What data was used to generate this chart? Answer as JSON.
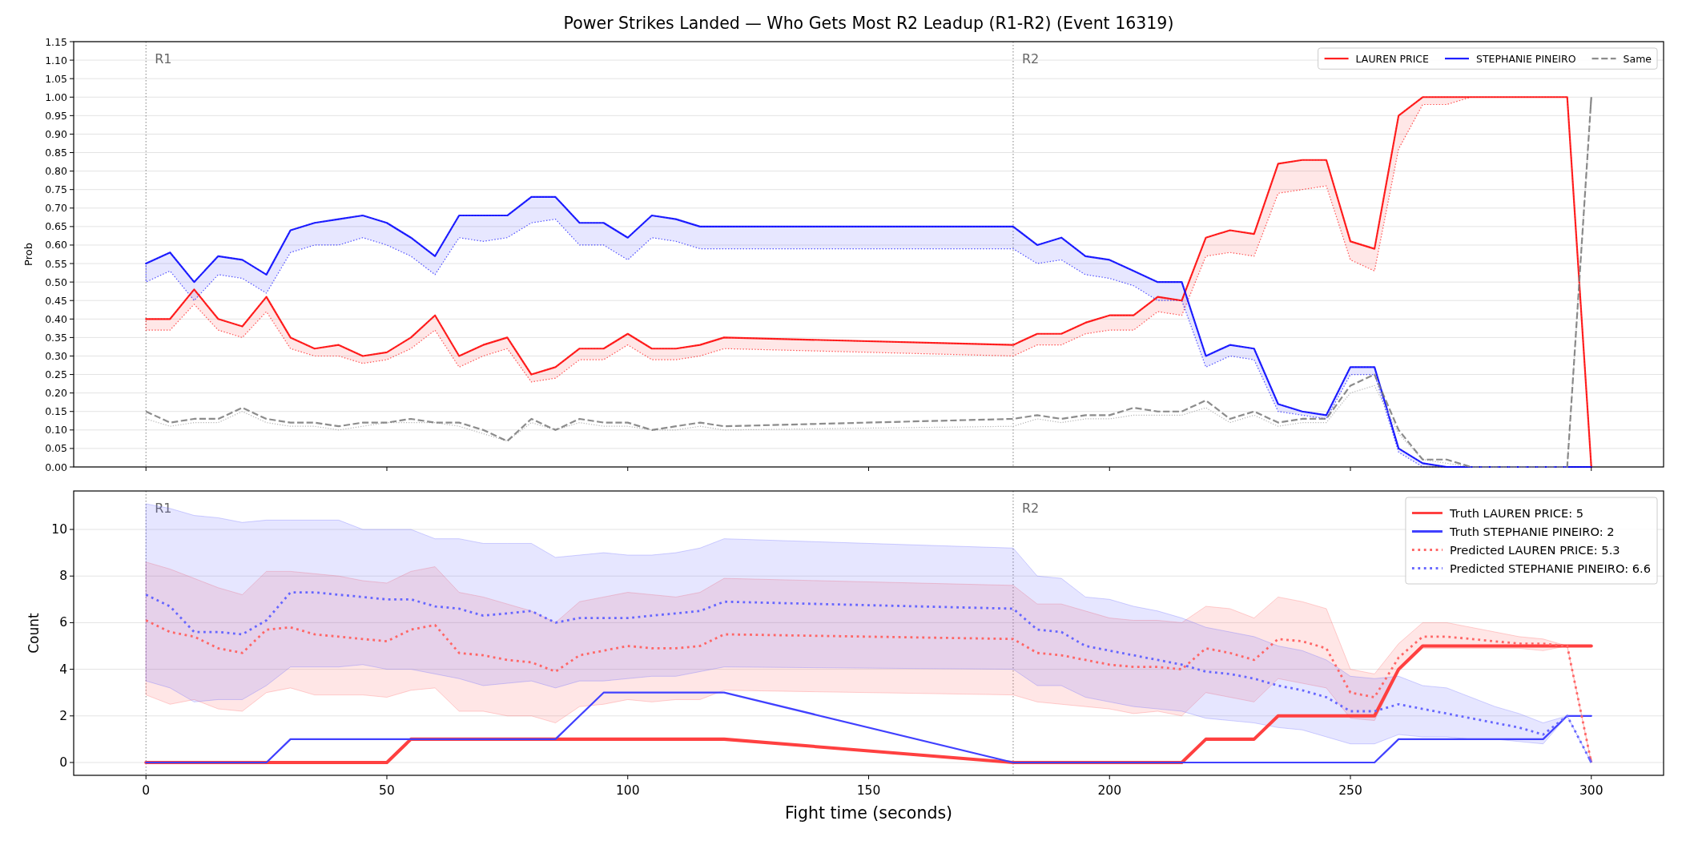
{
  "chart_data": [
    {
      "type": "line",
      "title": "Power Strikes Landed — Who Gets Most R2 Leadup (R1-R2) (Event 16319)",
      "ylabel": "Prob",
      "x": [
        0,
        5,
        10,
        15,
        20,
        25,
        30,
        35,
        40,
        45,
        50,
        55,
        60,
        65,
        70,
        75,
        80,
        85,
        90,
        95,
        100,
        105,
        110,
        115,
        120,
        180,
        185,
        190,
        195,
        200,
        205,
        210,
        215,
        220,
        225,
        230,
        235,
        240,
        245,
        250,
        255,
        260,
        265,
        270,
        275,
        280,
        285,
        290,
        295,
        300
      ],
      "series": [
        {
          "name": "LAUREN PRICE",
          "color": "#ff2020",
          "line_style": "solid",
          "values": [
            0.4,
            0.4,
            0.48,
            0.4,
            0.38,
            0.46,
            0.35,
            0.32,
            0.33,
            0.3,
            0.31,
            0.35,
            0.41,
            0.3,
            0.33,
            0.35,
            0.25,
            0.27,
            0.32,
            0.32,
            0.36,
            0.32,
            0.32,
            0.33,
            0.35,
            0.33,
            0.36,
            0.36,
            0.39,
            0.41,
            0.41,
            0.46,
            0.45,
            0.62,
            0.64,
            0.63,
            0.82,
            0.83,
            0.83,
            0.61,
            0.59,
            0.95,
            1.0,
            1.0,
            1.0,
            1.0,
            1.0,
            1.0,
            1.0,
            0
          ],
          "upper": [
            0.4,
            0.4,
            0.48,
            0.4,
            0.38,
            0.46,
            0.35,
            0.32,
            0.33,
            0.3,
            0.31,
            0.35,
            0.41,
            0.3,
            0.33,
            0.35,
            0.25,
            0.27,
            0.32,
            0.32,
            0.36,
            0.32,
            0.32,
            0.33,
            0.35,
            0.33,
            0.36,
            0.36,
            0.39,
            0.41,
            0.41,
            0.46,
            0.45,
            0.62,
            0.64,
            0.63,
            0.82,
            0.83,
            0.83,
            0.61,
            0.59,
            0.95,
            1.0,
            1.0,
            1.0,
            1.0,
            1.0,
            1.0,
            1.0,
            0
          ],
          "lower": [
            0.37,
            0.37,
            0.44,
            0.37,
            0.35,
            0.42,
            0.32,
            0.3,
            0.3,
            0.28,
            0.29,
            0.32,
            0.37,
            0.27,
            0.3,
            0.32,
            0.23,
            0.24,
            0.29,
            0.29,
            0.33,
            0.29,
            0.29,
            0.3,
            0.32,
            0.3,
            0.33,
            0.33,
            0.36,
            0.37,
            0.37,
            0.42,
            0.41,
            0.57,
            0.58,
            0.57,
            0.74,
            0.75,
            0.76,
            0.56,
            0.53,
            0.86,
            0.98,
            0.98,
            1.0,
            1.0,
            1.0,
            1.0,
            1.0,
            0
          ]
        },
        {
          "name": "STEPHANIE PINEIRO",
          "color": "#2020ff",
          "line_style": "solid",
          "values": [
            0.55,
            0.58,
            0.5,
            0.57,
            0.56,
            0.52,
            0.64,
            0.66,
            0.67,
            0.68,
            0.66,
            0.62,
            0.57,
            0.68,
            0.68,
            0.68,
            0.73,
            0.73,
            0.66,
            0.66,
            0.62,
            0.68,
            0.67,
            0.65,
            0.65,
            0.65,
            0.6,
            0.62,
            0.57,
            0.56,
            0.53,
            0.5,
            0.5,
            0.3,
            0.33,
            0.32,
            0.17,
            0.15,
            0.14,
            0.27,
            0.27,
            0.05,
            0.01,
            0,
            0,
            0,
            0,
            0,
            0,
            0
          ],
          "upper": [
            0.55,
            0.58,
            0.5,
            0.57,
            0.56,
            0.52,
            0.64,
            0.66,
            0.67,
            0.68,
            0.66,
            0.62,
            0.57,
            0.68,
            0.68,
            0.68,
            0.73,
            0.73,
            0.66,
            0.66,
            0.62,
            0.68,
            0.67,
            0.65,
            0.65,
            0.65,
            0.6,
            0.62,
            0.57,
            0.56,
            0.53,
            0.5,
            0.5,
            0.3,
            0.33,
            0.32,
            0.17,
            0.15,
            0.14,
            0.27,
            0.27,
            0.05,
            0.01,
            0,
            0,
            0,
            0,
            0,
            0,
            0
          ],
          "lower": [
            0.5,
            0.53,
            0.45,
            0.52,
            0.51,
            0.47,
            0.58,
            0.6,
            0.6,
            0.62,
            0.6,
            0.57,
            0.52,
            0.62,
            0.61,
            0.62,
            0.66,
            0.67,
            0.6,
            0.6,
            0.56,
            0.62,
            0.61,
            0.59,
            0.59,
            0.59,
            0.55,
            0.56,
            0.52,
            0.51,
            0.49,
            0.45,
            0.45,
            0.27,
            0.3,
            0.29,
            0.15,
            0.14,
            0.13,
            0.25,
            0.25,
            0.04,
            0,
            0,
            0,
            0,
            0,
            0,
            0,
            0
          ]
        },
        {
          "color": "#b4b4b4",
          "line_style": "dotted",
          "values": [
            0.13,
            0.11,
            0.12,
            0.12,
            0.15,
            0.12,
            0.11,
            0.11,
            0.1,
            0.11,
            0.12,
            0.12,
            0.12,
            0.11,
            0.09,
            0.07,
            0.12,
            0.1,
            0.12,
            0.11,
            0.11,
            0.1,
            0.1,
            0.11,
            0.1,
            0.11,
            0.13,
            0.12,
            0.13,
            0.13,
            0.14,
            0.14,
            0.14,
            0.16,
            0.12,
            0.14,
            0.11,
            0.12,
            0.12,
            0.2,
            0.22,
            0.09,
            0.02,
            0.01,
            0,
            0,
            0,
            0,
            0,
            1.0
          ]
        },
        {
          "name": "Same",
          "color": "#8c8c8c",
          "line_style": "dashed",
          "values": [
            0.15,
            0.12,
            0.13,
            0.13,
            0.16,
            0.13,
            0.12,
            0.12,
            0.11,
            0.12,
            0.12,
            0.13,
            0.12,
            0.12,
            0.1,
            0.07,
            0.13,
            0.1,
            0.13,
            0.12,
            0.12,
            0.1,
            0.11,
            0.12,
            0.11,
            0.13,
            0.14,
            0.13,
            0.14,
            0.14,
            0.16,
            0.15,
            0.15,
            0.18,
            0.13,
            0.15,
            0.12,
            0.13,
            0.13,
            0.22,
            0.25,
            0.1,
            0.02,
            0.02,
            0,
            0,
            0,
            0,
            0,
            1.0
          ]
        }
      ],
      "xlim": [
        -15,
        315
      ],
      "xticks": [
        0,
        50,
        100,
        150,
        200,
        250,
        300
      ],
      "ylim": [
        0,
        1.15
      ],
      "yticks": [
        {
          "value": 0,
          "label": "0.00"
        },
        {
          "value": 0.05,
          "label": "0.05"
        },
        {
          "value": 0.1,
          "label": "0.10"
        },
        {
          "value": 0.15,
          "label": "0.15"
        },
        {
          "value": 0.2,
          "label": "0.20"
        },
        {
          "value": 0.25,
          "label": "0.25"
        },
        {
          "value": 0.3,
          "label": "0.30"
        },
        {
          "value": 0.35,
          "label": "0.35"
        },
        {
          "value": 0.4,
          "label": "0.40"
        },
        {
          "value": 0.45,
          "label": "0.45"
        },
        {
          "value": 0.5,
          "label": "0.50"
        },
        {
          "value": 0.55,
          "label": "0.55"
        },
        {
          "value": 0.6,
          "label": "0.60"
        },
        {
          "value": 0.65,
          "label": "0.65"
        },
        {
          "value": 0.7,
          "label": "0.70"
        },
        {
          "value": 0.75,
          "label": "0.75"
        },
        {
          "value": 0.8,
          "label": "0.80"
        },
        {
          "value": 0.85,
          "label": "0.85"
        },
        {
          "value": 0.9,
          "label": "0.90"
        },
        {
          "value": 0.95,
          "label": "0.95"
        },
        {
          "value": 1,
          "label": "1.00"
        },
        {
          "value": 1.05,
          "label": "1.05"
        },
        {
          "value": 1.1,
          "label": "1.10"
        },
        {
          "value": 1.15,
          "label": "1.15"
        }
      ],
      "tick_labels": "y",
      "grid": "y",
      "legend": "top right",
      "ref_lines": [
        {
          "axis": "x",
          "value": 0,
          "label": "R1",
          "color": "#808080",
          "line_style": "dotted"
        },
        {
          "axis": "x",
          "value": 180,
          "label": "R2",
          "color": "#808080",
          "line_style": "dotted"
        }
      ]
    },
    {
      "type": "line",
      "xlabel": "Fight time (seconds)",
      "ylabel": "Count",
      "x": [
        0,
        5,
        10,
        15,
        20,
        25,
        30,
        35,
        40,
        45,
        50,
        55,
        60,
        65,
        70,
        75,
        80,
        85,
        90,
        95,
        100,
        105,
        110,
        115,
        120,
        180,
        185,
        190,
        195,
        200,
        205,
        210,
        215,
        220,
        225,
        230,
        235,
        240,
        245,
        250,
        255,
        260,
        265,
        270,
        275,
        280,
        285,
        290,
        295,
        300
      ],
      "series": [
        {
          "name": "Truth LAUREN PRICE: 5",
          "color": "#ff4040",
          "line_style": "solid",
          "values": [
            0,
            0,
            0,
            0,
            0,
            0,
            0,
            0,
            0,
            0,
            0,
            1,
            1,
            1,
            1,
            1,
            1,
            1,
            1,
            1,
            1,
            1,
            1,
            1,
            1,
            0,
            0,
            0,
            0,
            0,
            0,
            0,
            0,
            1,
            1,
            1,
            2,
            2,
            2,
            2,
            2,
            4,
            5,
            5,
            5,
            5,
            5,
            5,
            5,
            5
          ]
        },
        {
          "name": "Truth STEPHANIE PINEIRO: 2",
          "color": "#4040ff",
          "line_style": "solid",
          "values": [
            0,
            0,
            0,
            0,
            0,
            0,
            1,
            1,
            1,
            1,
            1,
            1,
            1,
            1,
            1,
            1,
            1,
            1,
            2,
            3,
            3,
            3,
            3,
            3,
            3,
            0,
            0,
            0,
            0,
            0,
            0,
            0,
            0,
            0,
            0,
            0,
            0,
            0,
            0,
            0,
            0,
            1,
            1,
            1,
            1,
            1,
            1,
            1,
            2,
            2
          ]
        },
        {
          "name": "Predicted LAUREN PRICE: 5.3",
          "color": "#ff6666",
          "line_style": "dotted",
          "values": [
            6.1,
            5.6,
            5.4,
            4.9,
            4.7,
            5.7,
            5.8,
            5.5,
            5.4,
            5.3,
            5.2,
            5.7,
            5.9,
            4.7,
            4.6,
            4.4,
            4.3,
            3.9,
            4.6,
            4.8,
            5.0,
            4.9,
            4.9,
            5.0,
            5.5,
            5.3,
            4.7,
            4.6,
            4.4,
            4.2,
            4.1,
            4.1,
            4.0,
            4.9,
            4.7,
            4.4,
            5.3,
            5.2,
            4.9,
            3.0,
            2.8,
            4.5,
            5.4,
            5.4,
            5.3,
            5.2,
            5.1,
            5.1,
            5.0,
            0
          ],
          "upper": [
            8.6,
            8.3,
            7.9,
            7.5,
            7.2,
            8.2,
            8.2,
            8.1,
            8.0,
            7.8,
            7.7,
            8.2,
            8.4,
            7.3,
            7.1,
            6.8,
            6.5,
            6.0,
            6.9,
            7.1,
            7.3,
            7.2,
            7.1,
            7.3,
            7.9,
            7.6,
            6.8,
            6.8,
            6.5,
            6.2,
            6.1,
            6.1,
            6.0,
            6.7,
            6.6,
            6.2,
            7.1,
            6.9,
            6.6,
            4.0,
            3.8,
            5.1,
            6.0,
            6.0,
            5.8,
            5.6,
            5.4,
            5.3,
            5.0,
            0
          ],
          "lower": [
            2.9,
            2.5,
            2.7,
            2.3,
            2.2,
            3.0,
            3.2,
            2.9,
            2.9,
            2.9,
            2.8,
            3.1,
            3.2,
            2.2,
            2.2,
            2.0,
            2.0,
            1.7,
            2.4,
            2.5,
            2.7,
            2.6,
            2.7,
            2.7,
            3.1,
            2.9,
            2.6,
            2.5,
            2.4,
            2.3,
            2.1,
            2.2,
            2.0,
            3.0,
            2.8,
            2.6,
            3.6,
            3.4,
            3.2,
            1.9,
            1.8,
            3.9,
            4.9,
            4.9,
            4.9,
            4.9,
            4.9,
            4.8,
            5.0,
            0
          ]
        },
        {
          "name": "Predicted STEPHANIE PINEIRO: 6.6",
          "color": "#6666ff",
          "line_style": "dotted",
          "values": [
            7.2,
            6.7,
            5.6,
            5.6,
            5.5,
            6.1,
            7.3,
            7.3,
            7.2,
            7.1,
            7.0,
            7.0,
            6.7,
            6.6,
            6.3,
            6.4,
            6.5,
            6.0,
            6.2,
            6.2,
            6.2,
            6.3,
            6.4,
            6.5,
            6.9,
            6.6,
            5.7,
            5.6,
            5.0,
            4.8,
            4.6,
            4.4,
            4.2,
            3.9,
            3.8,
            3.6,
            3.3,
            3.1,
            2.8,
            2.2,
            2.2,
            2.5,
            2.3,
            2.1,
            1.9,
            1.7,
            1.5,
            1.2,
            2.0,
            0
          ],
          "upper": [
            11.1,
            10.9,
            10.6,
            10.5,
            10.3,
            10.4,
            10.4,
            10.4,
            10.4,
            10.0,
            10.0,
            10.0,
            9.6,
            9.6,
            9.4,
            9.4,
            9.4,
            8.8,
            8.9,
            9.0,
            8.9,
            8.9,
            9.0,
            9.2,
            9.6,
            9.2,
            8.0,
            7.9,
            7.1,
            7.0,
            6.7,
            6.5,
            6.2,
            5.8,
            5.6,
            5.4,
            5.0,
            4.8,
            4.4,
            3.7,
            3.6,
            3.7,
            3.3,
            3.2,
            2.8,
            2.4,
            2.1,
            1.7,
            2.0,
            0
          ],
          "lower": [
            3.5,
            3.2,
            2.6,
            2.7,
            2.7,
            3.3,
            4.1,
            4.1,
            4.1,
            4.2,
            4.0,
            4.0,
            3.8,
            3.6,
            3.3,
            3.4,
            3.5,
            3.2,
            3.5,
            3.5,
            3.6,
            3.7,
            3.7,
            3.9,
            4.1,
            4.0,
            3.3,
            3.3,
            2.8,
            2.6,
            2.4,
            2.3,
            2.2,
            1.9,
            1.8,
            1.7,
            1.5,
            1.4,
            1.1,
            0.8,
            0.8,
            1.2,
            1.1,
            1.1,
            1.0,
            1.0,
            0.9,
            0.8,
            2.0,
            0
          ]
        }
      ],
      "xlim": [
        -15,
        315
      ],
      "xticks": [
        0,
        50,
        100,
        150,
        200,
        250,
        300
      ],
      "ylim": [
        -0.55,
        11.65
      ],
      "yticks": [
        0,
        2,
        4,
        6,
        8,
        10
      ],
      "grid": "y",
      "legend": "top right",
      "ref_lines": [
        {
          "axis": "x",
          "value": 0,
          "label": "R1",
          "color": "#808080",
          "line_style": "dotted"
        },
        {
          "axis": "x",
          "value": 180,
          "label": "R2",
          "color": "#808080",
          "line_style": "dotted"
        }
      ]
    }
  ]
}
